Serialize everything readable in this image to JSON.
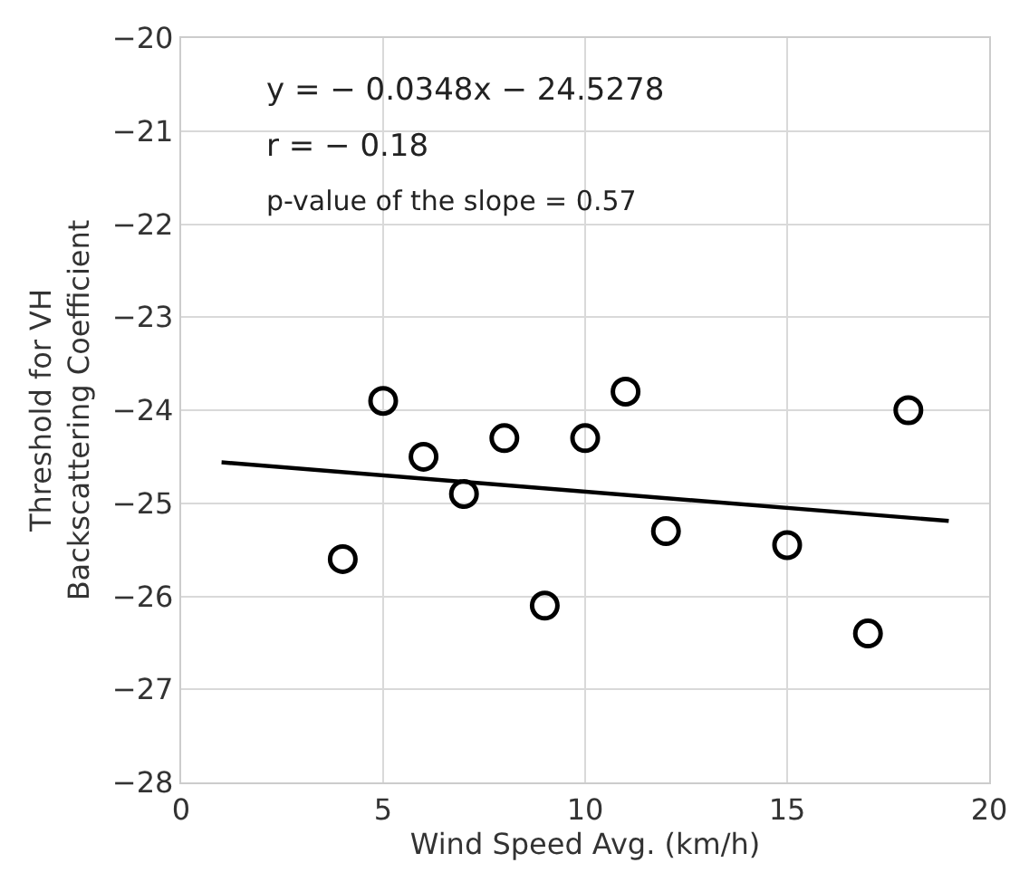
{
  "chart_data": {
    "type": "scatter",
    "xlabel": "Wind Speed Avg. (km/h)",
    "ylabel": "Threshold for VH\nBackscattering Coefficient",
    "xlim": [
      0,
      20
    ],
    "xticks": [
      0,
      5,
      10,
      15,
      20
    ],
    "ylim": [
      -28,
      -20
    ],
    "yticks": [
      -28,
      -27,
      -26,
      -25,
      -24,
      -23,
      -22,
      -21,
      -20
    ],
    "grid": true,
    "marker": "circle",
    "annotations": [
      "y = − 0.0348x − 24.5278",
      "r = − 0.18",
      "p-value of the slope = 0.57"
    ],
    "series": [
      {
        "color": "#000000",
        "x": [
          4,
          5,
          6,
          7,
          8,
          9,
          10,
          11,
          12,
          15,
          17,
          18
        ],
        "values": [
          -25.6,
          -23.9,
          -24.5,
          -24.9,
          -24.3,
          -26.1,
          -24.3,
          -23.8,
          -25.3,
          -25.45,
          -26.4,
          -24.0
        ]
      },
      {
        "type": "line",
        "color": "#000000",
        "marker": "none",
        "line_style": "solid",
        "x": [
          1,
          19
        ],
        "values": [
          -24.56,
          -25.19
        ]
      }
    ]
  }
}
